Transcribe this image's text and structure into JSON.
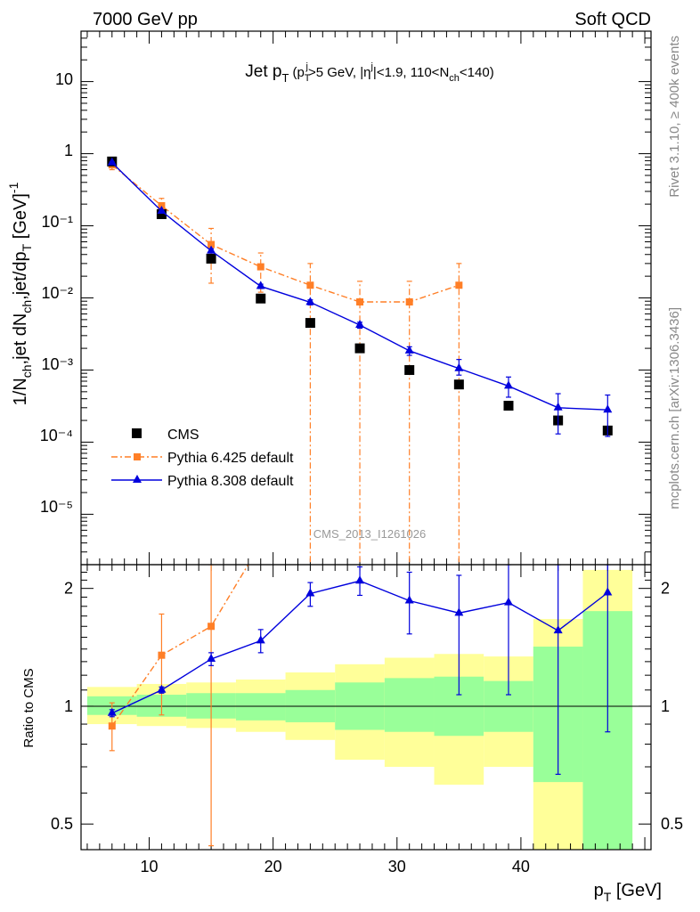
{
  "header": {
    "left": "7000 GeV pp",
    "right": "Soft QCD",
    "side_rivet": "Rivet 3.1.10, ≥ 400k events",
    "side_mcplots": "mcplots.cern.ch [arXiv:1306.3436]",
    "watermark": "CMS_2013_I1261026"
  },
  "chart_data": [
    {
      "type": "scatter",
      "panel": "main",
      "title_parts": {
        "main": "Jet p",
        "main_sub": "T",
        "cond_open": "(p",
        "cond_sub": "T",
        "cond_sup": "j",
        "cond_mid": ">5 GeV, |η",
        "cond_sup2": "j",
        "cond_mid2": "|<1.9, 110<N",
        "cond_sub2": "ch",
        "cond_close": "<140)"
      },
      "ylabel": "1/N_ch,jet dN_ch,jet/dp_T [GeV]^-1",
      "yscale": "log",
      "ylim": [
        2e-06,
        50
      ],
      "xlim": [
        4.5,
        50.5
      ],
      "ytick_labels": {
        "t10": "10",
        "t1": "1",
        "tm1": "10⁻¹",
        "tm2": "10⁻²",
        "tm3": "10⁻³",
        "tm4": "10⁻⁴",
        "tm5": "10⁻⁵"
      },
      "legend_position": "lower-left",
      "series": [
        {
          "name": "CMS",
          "color": "#000000",
          "marker": "square",
          "x": [
            7,
            11,
            15,
            19,
            23,
            27,
            31,
            35,
            39,
            43,
            47
          ],
          "y": [
            0.78,
            0.145,
            0.035,
            0.0098,
            0.0045,
            0.002,
            0.001,
            0.00063,
            0.00032,
            0.0002,
            0.000145
          ]
        },
        {
          "name": "Pythia 6.425 default",
          "color": "#ff7f27",
          "marker": "square",
          "line": "dashdot",
          "x": [
            7,
            11,
            15,
            19,
            23,
            27,
            31,
            35
          ],
          "y": [
            0.7,
            0.19,
            0.055,
            0.027,
            0.015,
            0.0088,
            0.0088,
            0.015
          ],
          "ylo": [
            0.6,
            0.15,
            0.016,
            0.012,
            1e-09,
            1e-09,
            1e-09,
            1e-09
          ],
          "yhi": [
            0.8,
            0.24,
            0.092,
            0.042,
            0.03,
            0.017,
            0.017,
            0.03
          ]
        },
        {
          "name": "Pythia 8.308 default",
          "color": "#0000dd",
          "marker": "triangle",
          "line": "solid",
          "x": [
            7,
            11,
            15,
            19,
            23,
            27,
            31,
            35,
            39,
            43,
            47
          ],
          "y": [
            0.75,
            0.16,
            0.045,
            0.0145,
            0.0087,
            0.0042,
            0.00185,
            0.00105,
            0.0006,
            0.0003,
            0.00028
          ],
          "ylo": [
            0.73,
            0.155,
            0.042,
            0.0135,
            0.008,
            0.0038,
            0.0016,
            0.00085,
            0.00042,
            0.00013,
            0.00012
          ],
          "yhi": [
            0.77,
            0.165,
            0.048,
            0.0155,
            0.0094,
            0.0046,
            0.0021,
            0.0014,
            0.0008,
            0.00047,
            0.00045
          ]
        }
      ]
    },
    {
      "type": "line",
      "panel": "ratio",
      "ylabel": "Ratio to CMS",
      "xlabel": "p_T [GeV]",
      "yscale": "log",
      "ylim": [
        0.43,
        2.3
      ],
      "xlim": [
        4.5,
        50.5
      ],
      "xticks": [
        10,
        20,
        30,
        40
      ],
      "yticks": [
        0.5,
        1,
        2
      ],
      "bands": {
        "bin_edges": [
          5,
          9,
          13,
          17,
          21,
          25,
          29,
          33,
          37,
          41,
          45,
          49
        ],
        "yellow_lo": [
          0.9,
          0.89,
          0.88,
          0.86,
          0.82,
          0.73,
          0.7,
          0.63,
          0.7,
          0.28,
          0.25
        ],
        "yellow_hi": [
          1.12,
          1.14,
          1.15,
          1.17,
          1.22,
          1.28,
          1.33,
          1.36,
          1.34,
          1.67,
          2.23
        ],
        "green_lo": [
          0.95,
          0.94,
          0.93,
          0.92,
          0.91,
          0.87,
          0.86,
          0.84,
          0.86,
          0.64,
          0.25
        ],
        "green_hi": [
          1.06,
          1.07,
          1.08,
          1.08,
          1.1,
          1.15,
          1.18,
          1.19,
          1.16,
          1.42,
          1.75
        ]
      },
      "series": [
        {
          "name": "Pythia 6.425 default",
          "color": "#ff7f27",
          "x": [
            7,
            11,
            15,
            19
          ],
          "y": [
            0.89,
            1.35,
            1.6,
            2.6
          ],
          "ylo": [
            0.77,
            0.95,
            0.44,
            2.6
          ],
          "yhi": [
            1.02,
            1.72,
            2.3,
            2.6
          ]
        },
        {
          "name": "Pythia 8.308 default",
          "color": "#0000dd",
          "x": [
            7,
            11,
            15,
            19,
            23,
            27,
            31,
            35,
            39,
            43,
            47
          ],
          "y": [
            0.96,
            1.1,
            1.32,
            1.47,
            1.94,
            2.09,
            1.86,
            1.73,
            1.84,
            1.56,
            1.95
          ],
          "ylo": [
            0.94,
            1.08,
            1.27,
            1.37,
            1.8,
            1.92,
            1.53,
            1.07,
            1.07,
            0.67,
            0.86
          ],
          "yhi": [
            0.98,
            1.12,
            1.37,
            1.57,
            2.07,
            2.27,
            2.2,
            2.16,
            2.3,
            2.3,
            2.3
          ]
        }
      ]
    }
  ]
}
